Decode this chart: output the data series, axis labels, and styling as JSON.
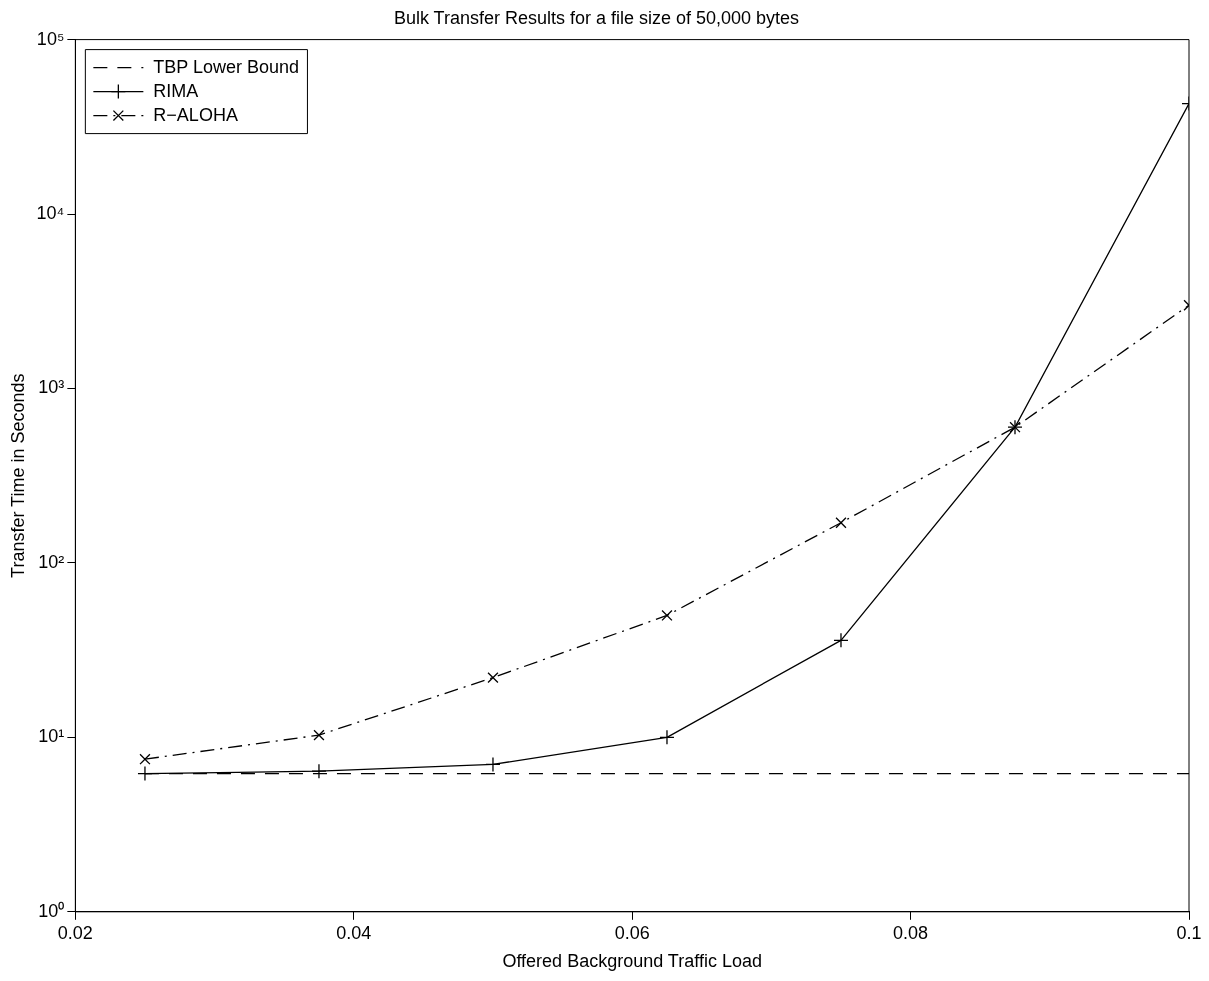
{
  "chart_data": {
    "type": "line",
    "title": "Bulk Transfer Results for a file size of 50,000 bytes",
    "xlabel": "Offered Background Traffic Load",
    "ylabel": "Transfer Time in Seconds",
    "x": [
      0.025,
      0.0375,
      0.05,
      0.0625,
      0.075,
      0.0875,
      0.1
    ],
    "series": [
      {
        "name": "TBP Lower Bound",
        "color": "#000000",
        "line_style": "dashed",
        "marker": "none",
        "values": [
          6.2,
          6.2,
          6.2,
          6.2,
          6.2,
          6.2,
          6.2
        ]
      },
      {
        "name": "RIMA",
        "color": "#000000",
        "line_style": "solid",
        "marker": "plus",
        "values": [
          6.2,
          6.4,
          7.0,
          10,
          36,
          600,
          43000
        ]
      },
      {
        "name": "R−ALOHA",
        "color": "#000000",
        "line_style": "dashdot",
        "marker": "cross",
        "values": [
          7.5,
          10.3,
          22,
          50,
          170,
          600,
          3000
        ]
      }
    ],
    "log": "y",
    "xlim": [
      0.02,
      0.1
    ],
    "xticks": [
      0.02,
      0.04,
      0.06,
      0.08,
      0.1
    ],
    "ylim": [
      1,
      100000
    ],
    "yticks": [
      {
        "value": 1,
        "label": "10⁰"
      },
      {
        "value": 10,
        "label": "10¹"
      },
      {
        "value": 100,
        "label": "10²"
      },
      {
        "value": 1000,
        "label": "10³"
      },
      {
        "value": 10000,
        "label": "10⁴"
      },
      {
        "value": 100000,
        "label": "10⁵"
      }
    ],
    "grid": false,
    "legend": "top left"
  }
}
